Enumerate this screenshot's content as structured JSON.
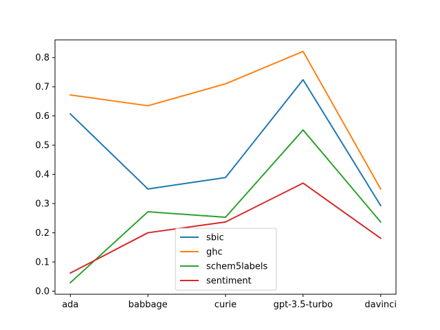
{
  "chart_data": {
    "type": "line",
    "categories": [
      "ada",
      "babbage",
      "curie",
      "gpt-3.5-turbo",
      "davinci"
    ],
    "series": [
      {
        "name": "sbic",
        "color": "#1f77b4",
        "values": [
          0.607,
          0.35,
          0.389,
          0.724,
          0.293
        ]
      },
      {
        "name": "ghc",
        "color": "#ff7f0e",
        "values": [
          0.672,
          0.635,
          0.71,
          0.821,
          0.35
        ]
      },
      {
        "name": "schem5labels",
        "color": "#2ca02c",
        "values": [
          0.029,
          0.272,
          0.253,
          0.552,
          0.237
        ]
      },
      {
        "name": "sentiment",
        "color": "#d62728",
        "values": [
          0.062,
          0.2,
          0.237,
          0.37,
          0.181
        ]
      }
    ],
    "yticks": [
      0.0,
      0.1,
      0.2,
      0.3,
      0.4,
      0.5,
      0.6,
      0.7,
      0.8
    ],
    "ytick_labels": [
      "0.0",
      "0.1",
      "0.2",
      "0.3",
      "0.4",
      "0.5",
      "0.6",
      "0.7",
      "0.8"
    ],
    "ylim": [
      -0.0106,
      0.8606
    ],
    "legend_placement": "lower-center",
    "grid": false,
    "title": "",
    "xlabel": "",
    "ylabel": ""
  }
}
